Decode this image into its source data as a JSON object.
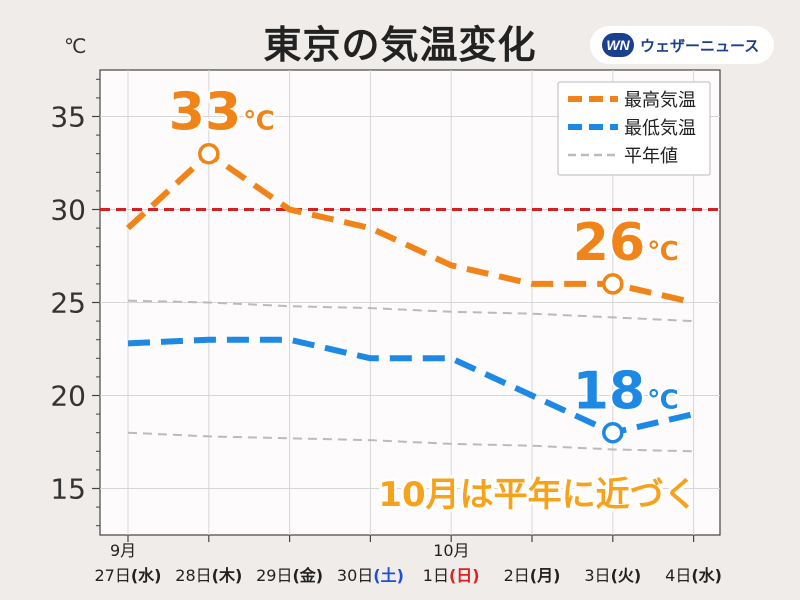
{
  "header": {
    "title": "東京の気温変化",
    "brand_logo": "WN",
    "brand_name": "ウェザーニュース"
  },
  "chart_data": {
    "type": "line",
    "unit_label": "℃",
    "ylim": [
      12.5,
      37.5
    ],
    "yticks": [
      15,
      20,
      25,
      30,
      35
    ],
    "grid": true,
    "legend_position": "top-right",
    "categories": [
      {
        "month": "9月",
        "day": "27日",
        "dow": "(水)",
        "dow_color": "#222222"
      },
      {
        "month": "",
        "day": "28日",
        "dow": "(木)",
        "dow_color": "#222222"
      },
      {
        "month": "",
        "day": "29日",
        "dow": "(金)",
        "dow_color": "#222222"
      },
      {
        "month": "",
        "day": "30日",
        "dow": "(土)",
        "dow_color": "#1f4fd8"
      },
      {
        "month": "10月",
        "day": "1日",
        "dow": "(日)",
        "dow_color": "#e02020"
      },
      {
        "month": "",
        "day": "2日",
        "dow": "(月)",
        "dow_color": "#222222"
      },
      {
        "month": "",
        "day": "3日",
        "dow": "(火)",
        "dow_color": "#222222"
      },
      {
        "month": "",
        "day": "4日",
        "dow": "(水)",
        "dow_color": "#222222"
      }
    ],
    "series": [
      {
        "name": "最高気温",
        "color": "#f08418",
        "values": [
          29,
          33,
          30,
          29,
          27,
          26,
          26,
          25
        ]
      },
      {
        "name": "最低気温",
        "color": "#1e88e5",
        "values": [
          22.8,
          23,
          23,
          22,
          22,
          20,
          18,
          19
        ]
      },
      {
        "name": "平年値",
        "color": "#bbbbbb",
        "values": [
          25.1,
          25,
          24.8,
          24.7,
          24.5,
          24.4,
          24.2,
          24
        ]
      },
      {
        "name": "",
        "color": "#bbbbbb",
        "values": [
          18,
          17.8,
          17.7,
          17.6,
          17.4,
          17.3,
          17.1,
          17
        ]
      }
    ],
    "reference_line": {
      "value": 30,
      "color": "#d42020"
    },
    "annotations": [
      {
        "series": 0,
        "index": 1,
        "value": "33",
        "unit": "℃",
        "color": "#f08418"
      },
      {
        "series": 0,
        "index": 6,
        "value": "26",
        "unit": "℃",
        "color": "#f08418"
      },
      {
        "series": 1,
        "index": 6,
        "value": "18",
        "unit": "℃",
        "color": "#1e88e5"
      }
    ],
    "note": {
      "text": "10月は平年に近づく",
      "fill": "#f7a21b",
      "stroke": "#ffffff"
    }
  }
}
